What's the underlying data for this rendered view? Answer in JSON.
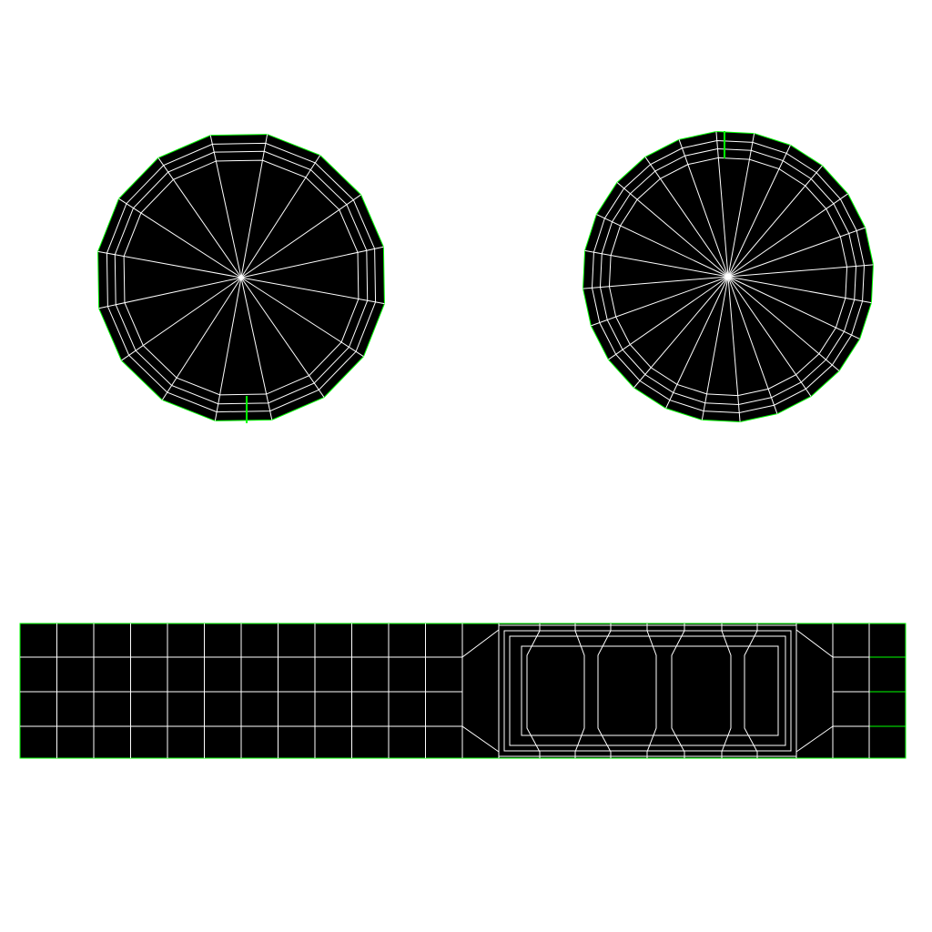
{
  "colors": {
    "background": "#ffffff",
    "island_fill": "#000000",
    "wire": "#ffffff",
    "seam": "#00ff00"
  },
  "islands": [
    {
      "kind": "cap-disc",
      "segments": 16,
      "rings": 3,
      "seam_side": "bottom"
    },
    {
      "kind": "cap-disc",
      "segments": 24,
      "rings": 3,
      "seam_side": "top"
    },
    {
      "kind": "side-strip",
      "columns": 12,
      "rows": 4,
      "has_inset_panel": true
    }
  ]
}
